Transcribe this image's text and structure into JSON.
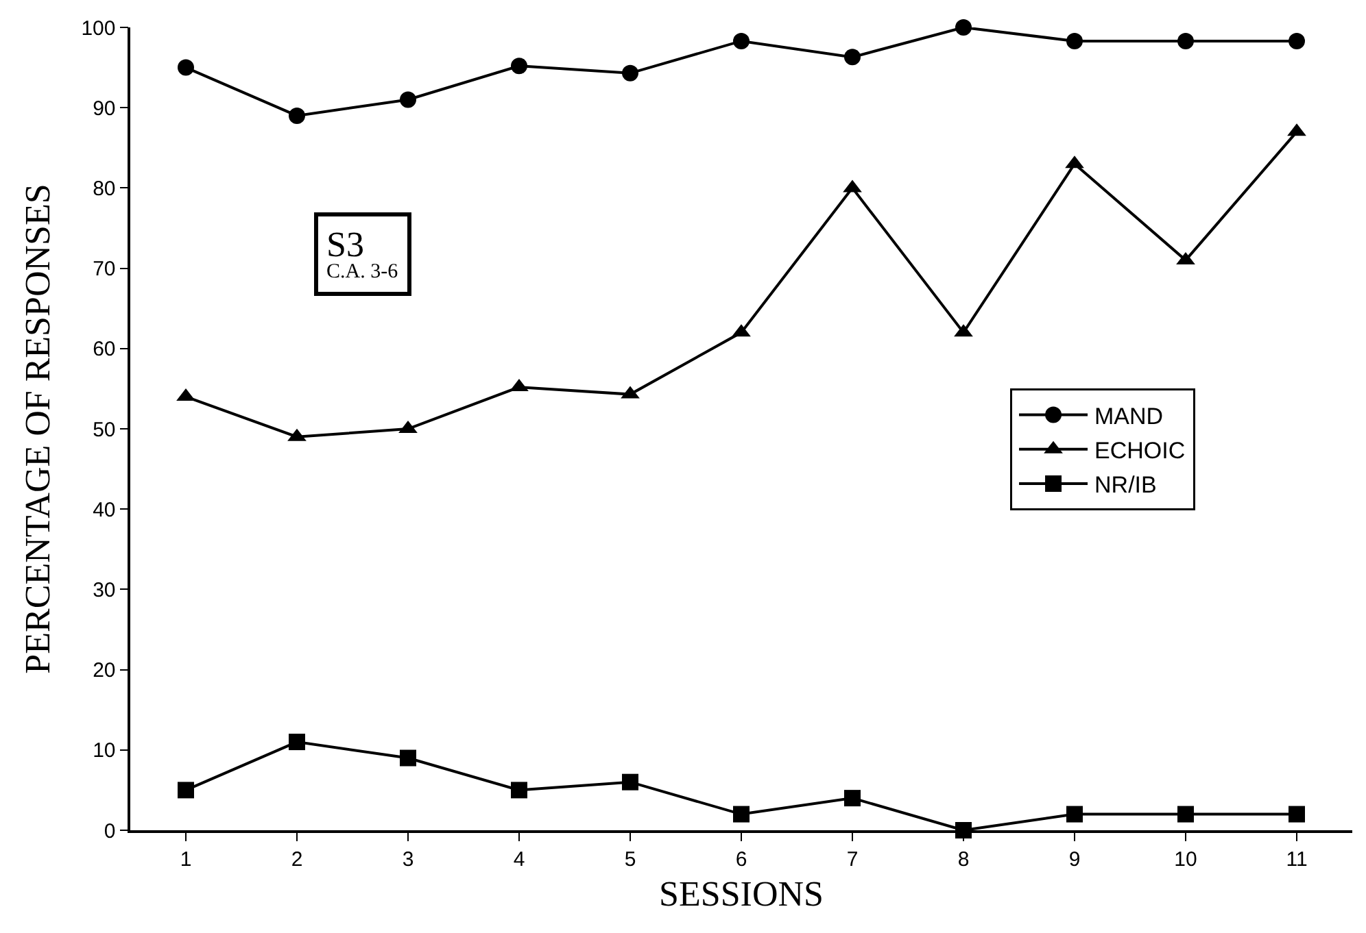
{
  "chart_data": {
    "type": "line",
    "xlabel": "SESSIONS",
    "ylabel": "PERCENTAGE OF RESPONSES",
    "x": [
      1,
      2,
      3,
      4,
      5,
      6,
      7,
      8,
      9,
      10,
      11
    ],
    "series": [
      {
        "name": "MAND",
        "color": "#000000",
        "marker": "circle",
        "values": [
          95,
          89,
          91,
          95.2,
          94.3,
          98.3,
          96.3,
          100,
          98.3,
          98.3,
          98.3
        ]
      },
      {
        "name": "ECHOIC",
        "color": "#000000",
        "marker": "triangle",
        "values": [
          54,
          49,
          50,
          55.2,
          54.3,
          62,
          80,
          62,
          83,
          71,
          87
        ]
      },
      {
        "name": "NR/IB",
        "color": "#000000",
        "marker": "square",
        "values": [
          5,
          11,
          9,
          5,
          6,
          2,
          4,
          0,
          2,
          2,
          2
        ]
      }
    ],
    "annotations": [
      "S3",
      "C.A. 3-6"
    ],
    "xlim": [
      0.5,
      11.5
    ],
    "xticks": [
      1,
      2,
      3,
      4,
      5,
      6,
      7,
      8,
      9,
      10,
      11
    ],
    "ylim": [
      0,
      100
    ],
    "yticks": [
      0,
      10,
      20,
      30,
      40,
      50,
      60,
      70,
      80,
      90,
      100
    ],
    "legend": "right",
    "line_style": "solid"
  }
}
